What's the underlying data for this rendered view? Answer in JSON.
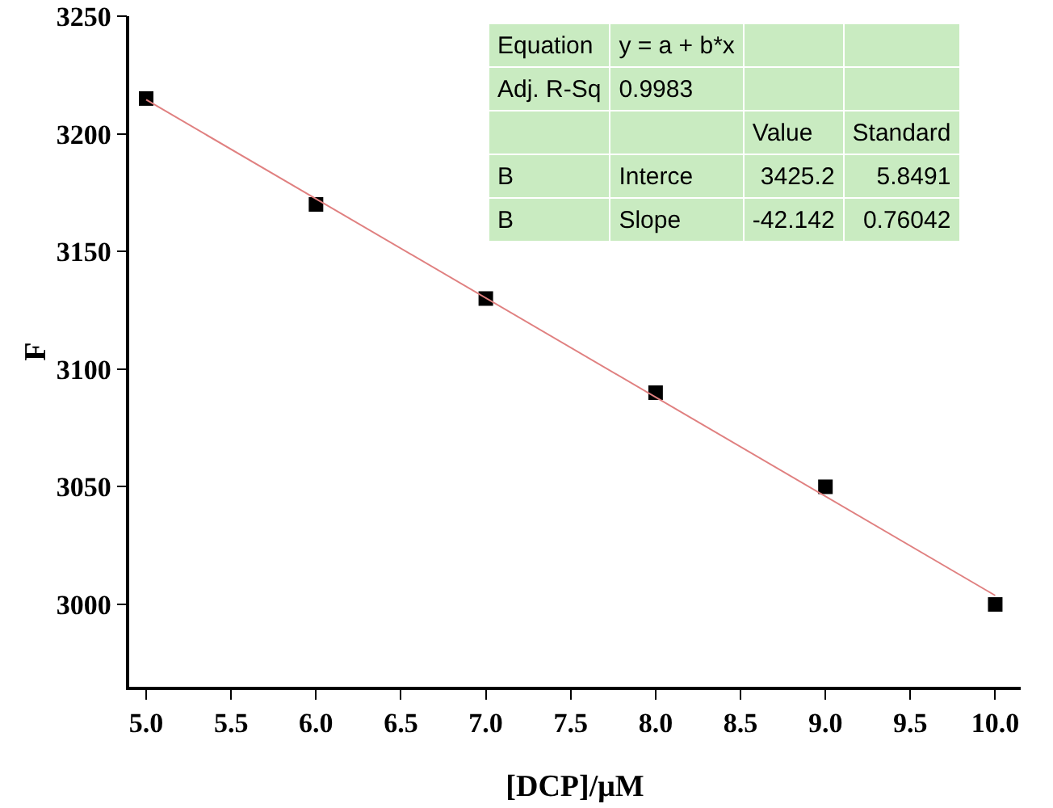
{
  "chart_data": {
    "type": "scatter",
    "xlabel": "[DCP]/μM",
    "ylabel": "F",
    "x": [
      5,
      6,
      7,
      8,
      9,
      10
    ],
    "series": [
      {
        "color": "#000000",
        "marker": "square",
        "values": [
          3215,
          3170,
          3130,
          3090,
          3050,
          3000
        ]
      },
      {
        "type": "line",
        "color": "#e08080",
        "marker": "none",
        "x": [
          5,
          10
        ],
        "values": [
          3214.5,
          3003.8
        ]
      }
    ],
    "xlim": [
      4.9,
      10.15
    ],
    "xticks": [
      {
        "value": 5,
        "label": "5.0"
      },
      {
        "value": 5.5,
        "label": "5.5"
      },
      {
        "value": 6,
        "label": "6.0"
      },
      {
        "value": 6.5,
        "label": "6.5"
      },
      {
        "value": 7,
        "label": "7.0"
      },
      {
        "value": 7.5,
        "label": "7.5"
      },
      {
        "value": 8,
        "label": "8.0"
      },
      {
        "value": 8.5,
        "label": "8.5"
      },
      {
        "value": 9,
        "label": "9.0"
      },
      {
        "value": 9.5,
        "label": "9.5"
      },
      {
        "value": 10,
        "label": "10.0"
      }
    ],
    "ylim": [
      2965,
      3250
    ],
    "yticks": [
      3000,
      3050,
      3100,
      3150,
      3200,
      3250
    ],
    "grid": false,
    "legend": false,
    "annotations": [
      "Equation",
      "y = a + b*x",
      "Adj. R-Sq",
      "0.9983",
      "Value",
      "Standard",
      "B",
      "Interce",
      "3425.2",
      "5.8491",
      "B",
      "Slope",
      "-42.142",
      "0.76042"
    ]
  }
}
